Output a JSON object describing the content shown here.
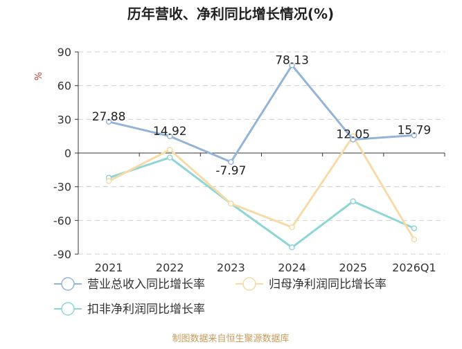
{
  "chart_data": {
    "type": "line",
    "title": "历年营收、净利同比增长情况(%)",
    "ylabel": "%",
    "xlabel": "",
    "categories": [
      "2021",
      "2022",
      "2023",
      "2024",
      "2025",
      "2026Q1"
    ],
    "ylim": [
      -90,
      90
    ],
    "yticks": [
      90,
      60,
      30,
      0,
      -30,
      -60,
      -90
    ],
    "grid": true,
    "series": [
      {
        "name": "营业总收入同比增长率",
        "color": "#94b3d8",
        "values": [
          27.88,
          14.92,
          -7.97,
          78.13,
          12.05,
          15.79
        ],
        "labels": [
          "27.88",
          "14.92",
          "-7.97",
          "78.13",
          "12.05",
          "15.79"
        ]
      },
      {
        "name": "归母净利润同比增长率",
        "color": "#f6dba6",
        "values": [
          -25,
          3,
          -45,
          -66,
          15,
          -77
        ]
      },
      {
        "name": "扣非净利润同比增长率",
        "color": "#8ed5d6",
        "values": [
          -22,
          -4,
          -45,
          -84,
          -43,
          -67
        ]
      }
    ],
    "legend_position": "bottom-left",
    "source": "制图数据来自恒生聚源数据库"
  }
}
